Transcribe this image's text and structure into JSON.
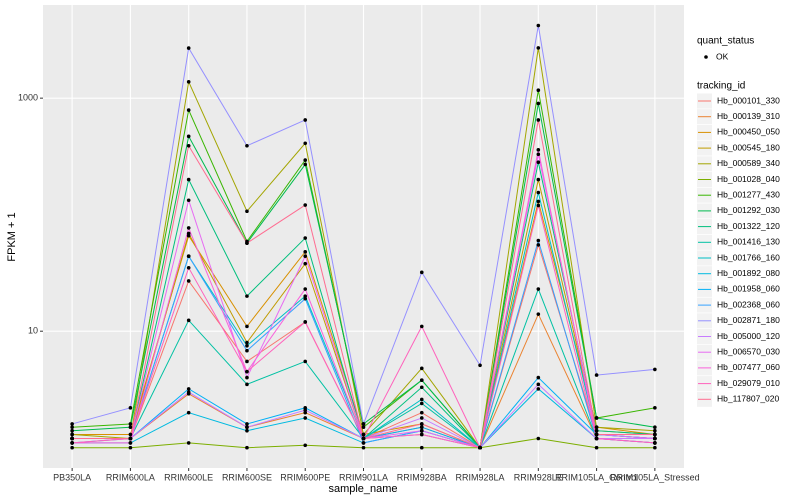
{
  "chart_data": {
    "type": "line",
    "x_label": "sample_name",
    "y_label": "FPKM + 1",
    "y_scale": "log",
    "ylim": [
      0.67,
      6300
    ],
    "yticks": [
      10,
      1000
    ],
    "grid": true,
    "point_color": "#000000",
    "status_legend": {
      "title": "quant_status",
      "levels": [
        "OK"
      ]
    },
    "legend": {
      "position": "right",
      "title": "tracking_id"
    },
    "categories": [
      "PB350LA",
      "RRIM600LA",
      "RRIM600LE",
      "RRIM600SE",
      "RRIM600PE",
      "RRIM901LA",
      "RRIM928BA",
      "RRIM928LA",
      "RRIM928LE",
      "RRIM105LA_Control",
      "RRIM105LA_Stressed"
    ],
    "series": [
      {
        "name": "Hb_000101_330",
        "color": "#F8766D",
        "values": [
          1.2,
          1.2,
          27,
          5.5,
          12,
          1.2,
          2.0,
          1,
          55,
          1.3,
          1.2
        ]
      },
      {
        "name": "Hb_000139_310",
        "color": "#EA8331",
        "values": [
          1.2,
          1.2,
          2.9,
          1.5,
          2.0,
          1.2,
          1.5,
          1,
          14,
          1.2,
          1.2
        ]
      },
      {
        "name": "Hb_000450_050",
        "color": "#D89000",
        "values": [
          1.3,
          1.3,
          66,
          11,
          48,
          1.3,
          1.6,
          1,
          130,
          1.5,
          1.3
        ]
      },
      {
        "name": "Hb_000545_180",
        "color": "#C09B00",
        "values": [
          1.2,
          1.2,
          69,
          8,
          38,
          1.2,
          1.3,
          1,
          200,
          1.4,
          1.3
        ]
      },
      {
        "name": "Hb_000589_340",
        "color": "#A3A500",
        "values": [
          1.3,
          1.2,
          1380,
          107,
          410,
          1.3,
          4.8,
          1,
          2700,
          1.5,
          1.4
        ]
      },
      {
        "name": "Hb_001028_040",
        "color": "#7CAE00",
        "values": [
          1.0,
          1.0,
          1.1,
          1.0,
          1.05,
          1.0,
          1.0,
          1,
          1.2,
          1.0,
          1.0
        ]
      },
      {
        "name": "Hb_001277_430",
        "color": "#39B600",
        "values": [
          1.5,
          1.6,
          790,
          59,
          294,
          1.5,
          3.8,
          1,
          1170,
          1.8,
          2.2
        ]
      },
      {
        "name": "Hb_001292_030",
        "color": "#00BB4E",
        "values": [
          1.4,
          1.5,
          470,
          57,
          270,
          1.6,
          3.8,
          1,
          900,
          1.8,
          1.5
        ]
      },
      {
        "name": "Hb_001322_120",
        "color": "#00BF7D",
        "values": [
          1.2,
          1.2,
          200,
          20,
          63,
          1.2,
          3.3,
          1,
          282,
          1.4,
          1.3
        ]
      },
      {
        "name": "Hb_001416_130",
        "color": "#00C1A3",
        "values": [
          1.2,
          1.2,
          12.4,
          3.5,
          5.5,
          1.2,
          2.4,
          1,
          23,
          1.2,
          1.2
        ]
      },
      {
        "name": "Hb_001766_160",
        "color": "#00BFC4",
        "values": [
          1.2,
          1.2,
          44,
          7.5,
          20,
          1.2,
          2.6,
          1,
          155,
          1.3,
          1.2
        ]
      },
      {
        "name": "Hb_001892_080",
        "color": "#00BAE0",
        "values": [
          1.1,
          1.1,
          2.0,
          1.4,
          1.8,
          1.1,
          1.4,
          1,
          3.2,
          1.2,
          1.1
        ]
      },
      {
        "name": "Hb_001958_060",
        "color": "#00B0F6",
        "values": [
          1.2,
          1.2,
          3.2,
          1.6,
          2.2,
          1.2,
          1.5,
          1,
          4.0,
          1.3,
          1.2
        ]
      },
      {
        "name": "Hb_002368_060",
        "color": "#35A2FF",
        "values": [
          1.1,
          1.2,
          44,
          6.8,
          19,
          1.1,
          1.4,
          1,
          60,
          1.2,
          1.1
        ]
      },
      {
        "name": "Hb_002871_180",
        "color": "#9590FF",
        "values": [
          1.6,
          2.2,
          2690,
          390,
          650,
          1.6,
          32,
          5.1,
          4200,
          4.2,
          4.7
        ]
      },
      {
        "name": "Hb_005000_120",
        "color": "#C77CFF",
        "values": [
          1.2,
          1.2,
          3.0,
          1.5,
          2.1,
          1.2,
          1.8,
          1,
          3.5,
          1.2,
          1.2
        ]
      },
      {
        "name": "Hb_006570_030",
        "color": "#E76BF3",
        "values": [
          1.2,
          1.2,
          133,
          4.0,
          44,
          1.2,
          1.4,
          1,
          330,
          1.3,
          1.2
        ]
      },
      {
        "name": "Hb_007477_060",
        "color": "#FA62DB",
        "values": [
          1.1,
          1.1,
          77,
          4.5,
          23,
          1.2,
          1.3,
          1,
          360,
          1.2,
          1.1
        ]
      },
      {
        "name": "Hb_029079_010",
        "color": "#FF62BC",
        "values": [
          1.1,
          1.2,
          35,
          4.5,
          12,
          1.2,
          11,
          1,
          120,
          1.2,
          1.1
        ]
      },
      {
        "name": "Hb_117807_020",
        "color": "#FF6C91",
        "values": [
          1.2,
          1.2,
          390,
          57,
          121,
          1.2,
          1.6,
          1,
          650,
          1.3,
          1.3
        ]
      }
    ]
  }
}
